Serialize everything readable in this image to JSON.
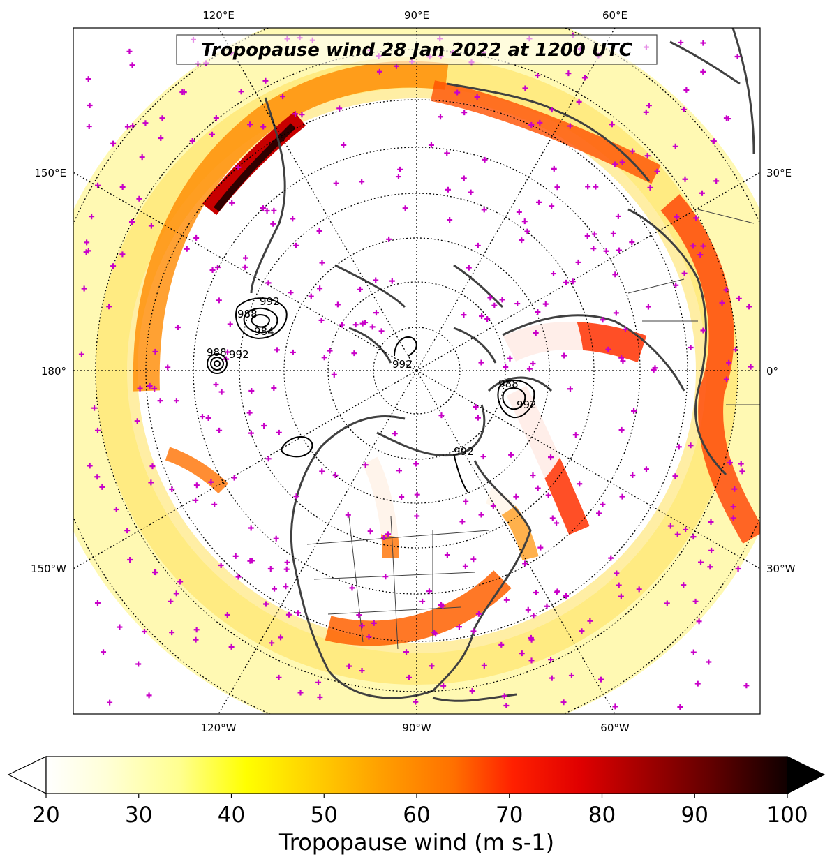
{
  "title": "Tropopause wind 28 Jan 2022 at 1200 UTC",
  "lon_labels": {
    "top": [
      "120°E",
      "90°E",
      "60°E"
    ],
    "left": [
      "150°E",
      "180°",
      "150°W"
    ],
    "right": [
      "30°E",
      "0°",
      "30°W"
    ],
    "bottom": [
      "120°W",
      "90°W",
      "60°W"
    ]
  },
  "contour_labels": [
    "992",
    "988",
    "984",
    "992",
    "988",
    "992",
    "992",
    "988",
    "992"
  ],
  "colorbar": {
    "label": "Tropopause wind (m s-1)",
    "ticks": [
      20,
      30,
      40,
      50,
      60,
      70,
      80,
      90,
      100
    ],
    "min": 20,
    "max": 100,
    "extend": "both",
    "colormap": "hot_r"
  },
  "colors": {
    "station_marker": "#c800c8",
    "coastline": "#404040",
    "contour": "#000000"
  }
}
